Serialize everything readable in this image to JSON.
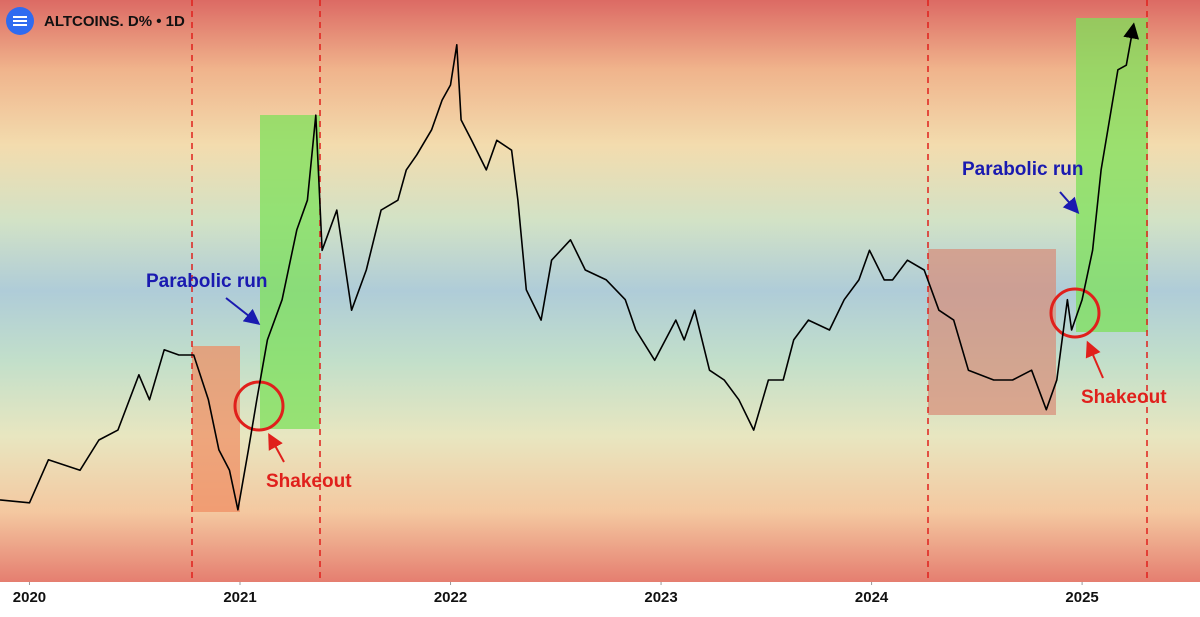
{
  "chart_data": {
    "type": "line",
    "title": "ALTCOINS. D% • 1D",
    "x": [
      2019.86,
      2020.0,
      2020.09,
      2020.24,
      2020.33,
      2020.42,
      2020.52,
      2020.57,
      2020.64,
      2020.71,
      2020.78,
      2020.85,
      2020.9,
      2020.95,
      2020.99,
      2021.04,
      2021.08,
      2021.13,
      2021.2,
      2021.27,
      2021.32,
      2021.36,
      2021.39,
      2021.46,
      2021.53,
      2021.6,
      2021.67,
      2021.75,
      2021.79,
      2021.84,
      2021.91,
      2021.96,
      2022.0,
      2022.03,
      2022.05,
      2022.1,
      2022.17,
      2022.22,
      2022.29,
      2022.32,
      2022.36,
      2022.43,
      2022.48,
      2022.57,
      2022.64,
      2022.74,
      2022.83,
      2022.88,
      2022.97,
      2023.07,
      2023.11,
      2023.16,
      2023.23,
      2023.3,
      2023.37,
      2023.44,
      2023.51,
      2023.58,
      2023.63,
      2023.7,
      2023.8,
      2023.87,
      2023.94,
      2023.99,
      2024.06,
      2024.1,
      2024.17,
      2024.25,
      2024.32,
      2024.39,
      2024.46,
      2024.58,
      2024.67,
      2024.76,
      2024.83,
      2024.88,
      2024.93,
      2024.95,
      2025.0,
      2025.05,
      2025.09,
      2025.17,
      2025.21,
      2025.24
    ],
    "values": [
      14.1,
      13.6,
      21.0,
      19.2,
      24.4,
      26.1,
      35.6,
      31.3,
      39.9,
      39.0,
      39.0,
      31.3,
      22.7,
      19.2,
      12.4,
      22.7,
      31.3,
      41.6,
      48.5,
      60.5,
      65.6,
      80.2,
      57.0,
      63.9,
      46.7,
      53.6,
      63.9,
      65.6,
      70.8,
      73.4,
      77.7,
      82.8,
      85.4,
      92.3,
      79.4,
      75.9,
      70.8,
      75.9,
      74.2,
      65.6,
      50.2,
      45.0,
      55.3,
      58.8,
      53.6,
      51.9,
      48.5,
      43.3,
      38.1,
      45.0,
      41.6,
      46.7,
      36.4,
      34.7,
      31.3,
      26.1,
      34.7,
      34.7,
      41.6,
      45.0,
      43.3,
      48.5,
      51.9,
      57.0,
      51.9,
      51.9,
      55.3,
      53.6,
      46.7,
      45.0,
      36.4,
      34.7,
      34.7,
      36.4,
      29.6,
      34.7,
      48.5,
      43.3,
      48.5,
      57.0,
      70.8,
      88.0,
      88.8,
      94.8
    ],
    "color": "#000000",
    "xlim": [
      2019.86,
      2025.56
    ],
    "xticks": [
      2020,
      2021,
      2022,
      2023,
      2024,
      2025
    ],
    "ylim": [
      0,
      100
    ],
    "annotations": [
      "Parabolic run",
      "Shakeout",
      "Parabolic run",
      "Shakeout"
    ]
  }
}
